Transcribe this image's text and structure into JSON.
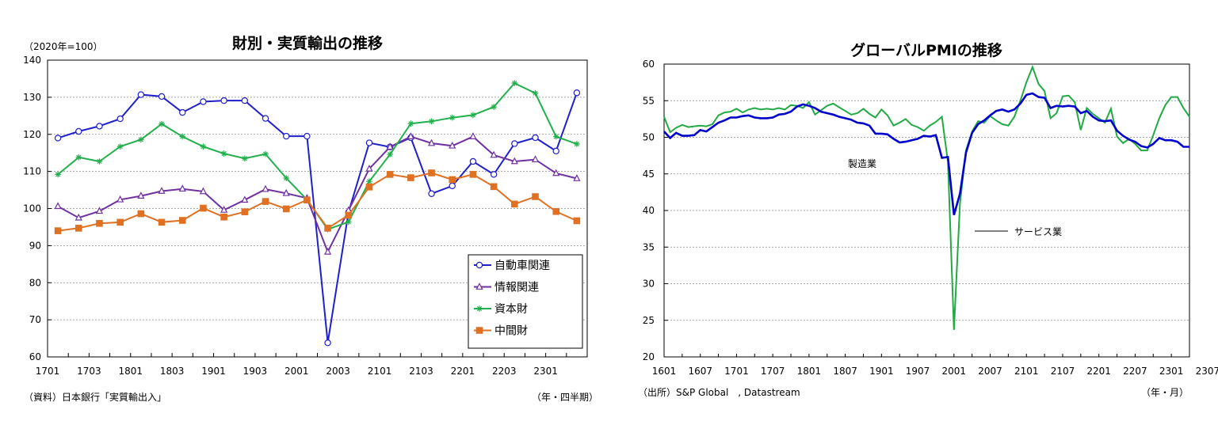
{
  "chart_data": [
    {
      "type": "line",
      "title": "財別・実質輸出の推移",
      "unit_note": "（2020年=100）",
      "source_note": "（資料）日本銀行「実質輸出入」",
      "x_note": "（年・四半期）",
      "ylim": [
        60,
        140
      ],
      "yticks": [
        "60",
        "70",
        "80",
        "90",
        "100",
        "110",
        "120",
        "130",
        "140"
      ],
      "x_tick_labels": [
        "1701",
        "1703",
        "1801",
        "1803",
        "1901",
        "1903",
        "2001",
        "2003",
        "2101",
        "2103",
        "2201",
        "2203",
        "2301"
      ],
      "grid": true,
      "legend_position": "bottom-right",
      "series": [
        {
          "name": "自動車関連",
          "color": "#1f1fcc",
          "marker": "circle",
          "values": [
            119,
            120.8,
            122.2,
            124.2,
            130.7,
            130.2,
            125.9,
            128.8,
            129.1,
            129.1,
            124.3,
            119.5,
            119.5,
            63.8,
            99,
            117.7,
            116.6,
            119.1,
            104,
            106.1,
            112.7,
            109.2,
            117.5,
            119.1,
            115.5,
            131.2
          ]
        },
        {
          "name": "情報関連",
          "color": "#7030a0",
          "marker": "triangle",
          "values": [
            100.6,
            97.5,
            99.3,
            102.4,
            103.4,
            104.7,
            105.3,
            104.6,
            99.6,
            102.3,
            105.2,
            104.1,
            102.8,
            88.3,
            99.5,
            110.7,
            116.6,
            119.4,
            117.6,
            116.9,
            119.4,
            114.4,
            112.7,
            113.2,
            109.5,
            108.1
          ]
        },
        {
          "name": "資本財",
          "color": "#22b04c",
          "marker": "asterisk",
          "values": [
            109.2,
            113.8,
            112.7,
            116.7,
            118.6,
            122.8,
            119.4,
            116.7,
            114.8,
            113.5,
            114.7,
            108.2,
            102.4,
            94.4,
            96.4,
            107.3,
            114.6,
            122.9,
            123.5,
            124.5,
            125.2,
            127.4,
            133.8,
            131.1,
            119.4,
            117.4
          ]
        },
        {
          "name": "中間財",
          "color": "#e07022",
          "marker": "square",
          "values": [
            94,
            94.7,
            96,
            96.3,
            98.6,
            96.3,
            96.8,
            100.1,
            97.7,
            99.1,
            101.9,
            99.9,
            102.3,
            94.7,
            98.2,
            105.8,
            109.2,
            108.3,
            109.6,
            107.8,
            109.2,
            105.9,
            101.2,
            103.2,
            99.2,
            96.7
          ]
        }
      ]
    },
    {
      "type": "line",
      "title": "グローバルPMIの推移",
      "source_note": "（出所）S&P Global　, Datastream",
      "x_note": "（年・月）",
      "ylim": [
        20,
        60
      ],
      "yticks": [
        "20",
        "25",
        "30",
        "35",
        "40",
        "45",
        "50",
        "55",
        "60"
      ],
      "x_tick_labels": [
        "1601",
        "1607",
        "1701",
        "1707",
        "1801",
        "1807",
        "1901",
        "1907",
        "2001",
        "2007",
        "2101",
        "2107",
        "2201",
        "2207",
        "2301",
        "2307"
      ],
      "grid": true,
      "annotations": [
        "製造業",
        "サービス業"
      ],
      "series": [
        {
          "name": "製造業",
          "color": "#0000cc",
          "values": [
            50.8,
            49.9,
            50.6,
            50.2,
            50.2,
            50.3,
            51.0,
            50.8,
            51.4,
            52.0,
            52.3,
            52.7,
            52.7,
            52.9,
            53.0,
            52.7,
            52.6,
            52.6,
            52.7,
            53.1,
            53.2,
            53.5,
            54.2,
            54.5,
            54.3,
            54.0,
            53.5,
            53.3,
            53.1,
            52.8,
            52.6,
            52.4,
            52.0,
            51.9,
            51.6,
            50.5,
            50.5,
            50.4,
            49.8,
            49.3,
            49.4,
            49.6,
            49.8,
            50.2,
            50.1,
            50.3,
            47.2,
            47.3,
            39.4,
            42.3,
            47.9,
            50.6,
            51.8,
            52.3,
            53.0,
            53.6,
            53.8,
            53.5,
            53.8,
            54.6,
            55.8,
            56.0,
            55.5,
            55.4,
            54.0,
            54.3,
            54.2,
            54.3,
            54.2,
            53.3,
            53.6,
            52.8,
            52.3,
            52.2,
            52.3,
            50.9,
            50.2,
            49.7,
            49.4,
            48.8,
            48.6,
            49.1,
            49.9,
            49.6,
            49.6,
            49.4,
            48.7,
            48.7
          ]
        },
        {
          "name": "サービス業",
          "color": "#22aa44",
          "values": [
            52.8,
            50.7,
            51.3,
            51.7,
            51.4,
            51.5,
            51.6,
            51.5,
            51.8,
            53.0,
            53.4,
            53.5,
            53.9,
            53.4,
            53.8,
            54.0,
            53.8,
            53.9,
            53.8,
            54.0,
            53.8,
            54.4,
            54.3,
            54.0,
            54.8,
            53.1,
            53.7,
            54.3,
            54.6,
            54.1,
            53.6,
            53.1,
            53.3,
            53.9,
            53.2,
            52.7,
            53.8,
            53.0,
            51.6,
            52.0,
            52.5,
            51.7,
            51.4,
            50.9,
            51.6,
            52.1,
            52.8,
            46.6,
            23.7,
            41.0,
            48.2,
            50.8,
            52.2,
            52.0,
            52.9,
            52.3,
            51.8,
            51.6,
            52.8,
            55.0,
            57.5,
            59.6,
            57.3,
            56.3,
            52.6,
            53.3,
            55.6,
            55.7,
            54.8,
            51.0,
            54.0,
            53.2,
            52.6,
            52.0,
            53.9,
            50.1,
            49.2,
            49.8,
            49.1,
            48.2,
            48.2,
            50.3,
            52.6,
            54.4,
            55.5,
            55.5,
            54.0,
            52.8
          ]
        }
      ]
    }
  ]
}
